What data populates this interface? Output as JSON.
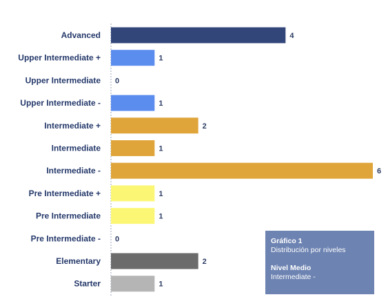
{
  "chart_data": {
    "type": "bar",
    "orientation": "horizontal",
    "categories": [
      "Advanced",
      "Upper Intermediate +",
      "Upper Intermediate",
      "Upper Intermediate -",
      "Intermediate +",
      "Intermediate",
      "Intermediate -",
      "Pre Intermediate +",
      "Pre Intermediate",
      "Pre Intermediate -",
      "Elementary",
      "Starter"
    ],
    "values": [
      4,
      1,
      0,
      1,
      2,
      1,
      6,
      1,
      1,
      0,
      2,
      1
    ],
    "bar_colors": [
      "#33467a",
      "#5b8def",
      "#5b8def",
      "#5b8def",
      "#dfa53a",
      "#dfa53a",
      "#dfa53a",
      "#fbf775",
      "#fbf775",
      "#fbf775",
      "#6b6b6b",
      "#b5b5b5"
    ],
    "xlim": [
      0,
      6
    ],
    "grid": false,
    "legend": "none",
    "title": "",
    "xlabel": "",
    "ylabel": ""
  },
  "info_box": {
    "title": "Gráfico 1",
    "subtitle": "Distribución por niveles",
    "level_title": "Nivel Medio",
    "level_value": "Intermediate -",
    "background": "#6d83b2"
  }
}
